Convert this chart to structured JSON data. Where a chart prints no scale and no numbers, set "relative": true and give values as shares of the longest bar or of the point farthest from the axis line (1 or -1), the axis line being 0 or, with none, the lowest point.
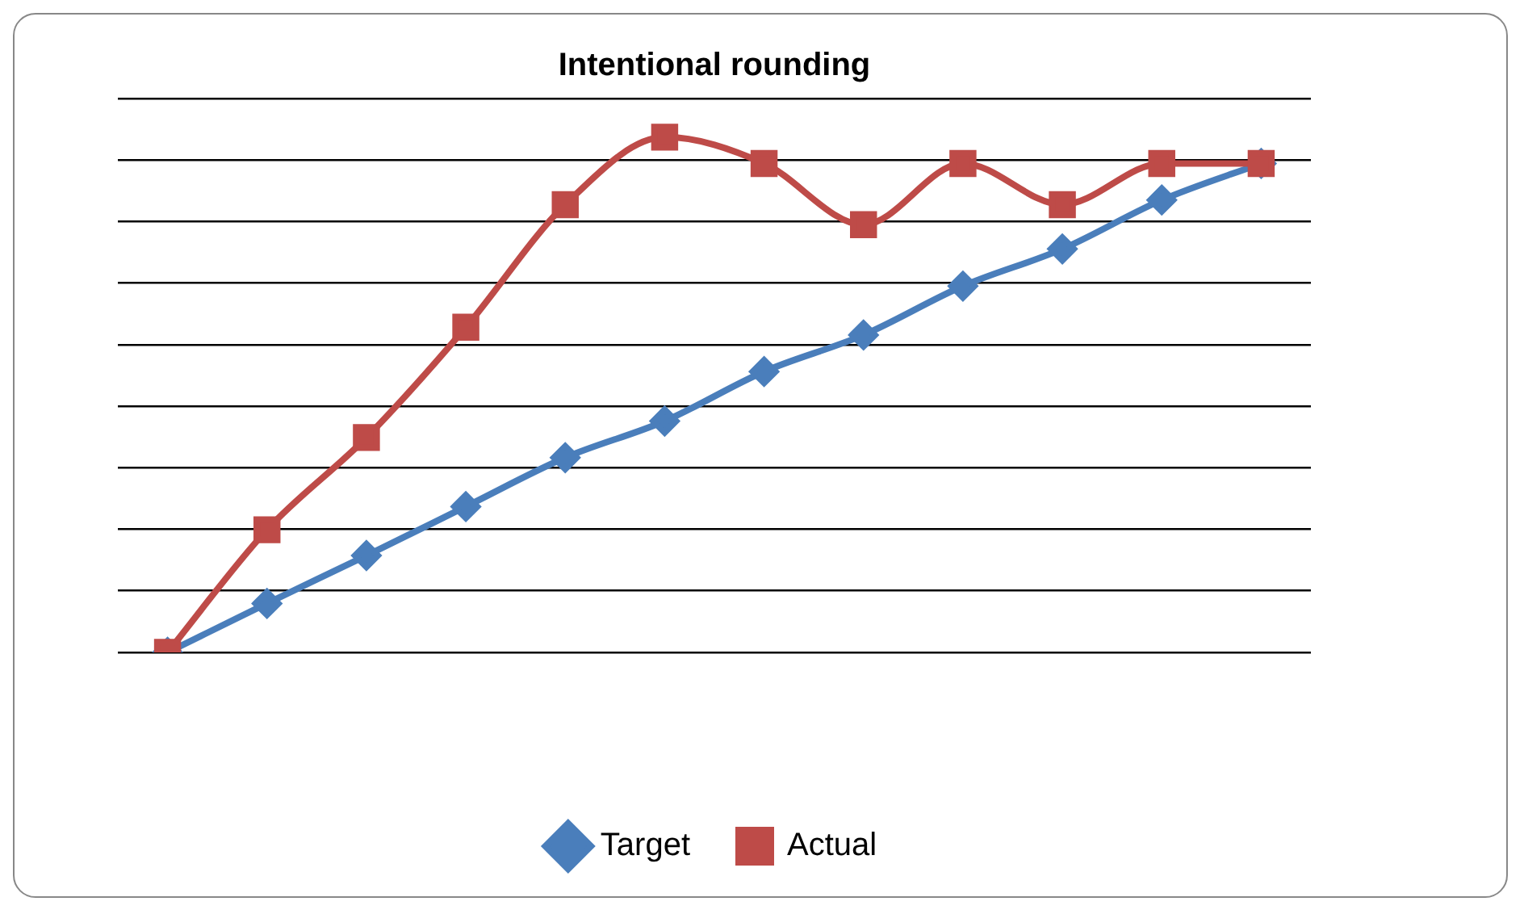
{
  "chart_data": {
    "type": "line",
    "title": "Intentional rounding",
    "relative": true,
    "categories": [
      null,
      null,
      null,
      null,
      null,
      null,
      null,
      null,
      null,
      null,
      null,
      null
    ],
    "series": [
      {
        "name": "Target",
        "color": "#4a7ebb",
        "marker": "diamond",
        "values": [
          0,
          0.095,
          0.188,
          0.283,
          0.378,
          0.449,
          0.545,
          0.616,
          0.711,
          0.783,
          0.878,
          0.949
        ]
      },
      {
        "name": "Actual",
        "color": "#be4b48",
        "marker": "square",
        "values": [
          0,
          0.238,
          0.417,
          0.631,
          0.869,
          1,
          0.949,
          0.83,
          0.949,
          0.869,
          0.949,
          0.949
        ]
      }
    ],
    "grid": "y",
    "legend": "bottom"
  }
}
